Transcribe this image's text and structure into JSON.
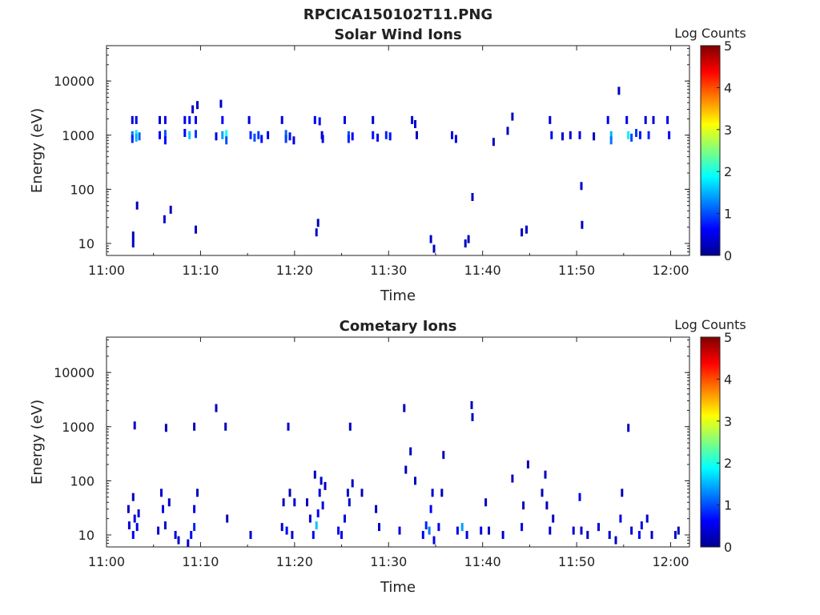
{
  "figure_title": "RPCICA150102T11.PNG",
  "chart_data": [
    {
      "type": "heatmap",
      "title": "Solar Wind Ions",
      "xlabel": "Time",
      "ylabel": "Energy (eV)",
      "x_scale": "time",
      "y_scale": "log",
      "xlim": [
        "11:00",
        "12:02"
      ],
      "ylim": [
        6,
        45000
      ],
      "xticks": [
        "11:00",
        "11:10",
        "11:20",
        "11:30",
        "11:40",
        "11:50",
        "12:00"
      ],
      "yticks": [
        "10",
        "100",
        "1000",
        "10000"
      ],
      "colorbar": {
        "label": "Log Counts",
        "range": [
          0,
          5
        ],
        "ticks": [
          "0",
          "1",
          "2",
          "3",
          "4",
          "5"
        ],
        "colormap": "jet"
      },
      "cells": [
        {
          "t": "11:02:45",
          "e": 1000,
          "v": 1.2
        },
        {
          "t": "11:02:45",
          "e": 850,
          "v": 0.8
        },
        {
          "t": "11:02:45",
          "e": 1900,
          "v": 0.4
        },
        {
          "t": "11:03:10",
          "e": 1050,
          "v": 1.8
        },
        {
          "t": "11:03:10",
          "e": 900,
          "v": 1.5
        },
        {
          "t": "11:03:10",
          "e": 1900,
          "v": 0.5
        },
        {
          "t": "11:03:30",
          "e": 950,
          "v": 1.1
        },
        {
          "t": "11:03:15",
          "e": 50,
          "v": 0.3
        },
        {
          "t": "11:02:50",
          "e": 10,
          "v": 0.4
        },
        {
          "t": "11:02:50",
          "e": 14,
          "v": 0.3
        },
        {
          "t": "11:05:40",
          "e": 1900,
          "v": 0.4
        },
        {
          "t": "11:05:40",
          "e": 1000,
          "v": 0.6
        },
        {
          "t": "11:06:15",
          "e": 1050,
          "v": 1.0
        },
        {
          "t": "11:06:15",
          "e": 800,
          "v": 0.6
        },
        {
          "t": "11:06:15",
          "e": 1900,
          "v": 0.5
        },
        {
          "t": "11:06:10",
          "e": 28,
          "v": 0.4
        },
        {
          "t": "11:06:50",
          "e": 42,
          "v": 0.3
        },
        {
          "t": "11:08:20",
          "e": 1100,
          "v": 0.6
        },
        {
          "t": "11:08:20",
          "e": 1900,
          "v": 0.5
        },
        {
          "t": "11:08:50",
          "e": 1000,
          "v": 1.6
        },
        {
          "t": "11:08:50",
          "e": 1900,
          "v": 0.7
        },
        {
          "t": "11:09:10",
          "e": 3000,
          "v": 0.4
        },
        {
          "t": "11:09:30",
          "e": 1050,
          "v": 0.9
        },
        {
          "t": "11:09:30",
          "e": 1900,
          "v": 0.6
        },
        {
          "t": "11:09:40",
          "e": 3600,
          "v": 0.3
        },
        {
          "t": "11:09:30",
          "e": 18,
          "v": 0.3
        },
        {
          "t": "11:11:40",
          "e": 950,
          "v": 0.5
        },
        {
          "t": "11:12:20",
          "e": 1000,
          "v": 1.4
        },
        {
          "t": "11:12:20",
          "e": 1900,
          "v": 0.6
        },
        {
          "t": "11:12:45",
          "e": 1050,
          "v": 1.9
        },
        {
          "t": "11:12:45",
          "e": 800,
          "v": 1.0
        },
        {
          "t": "11:12:10",
          "e": 3800,
          "v": 0.4
        },
        {
          "t": "11:15:10",
          "e": 1900,
          "v": 0.5
        },
        {
          "t": "11:15:20",
          "e": 1000,
          "v": 0.8
        },
        {
          "t": "11:15:45",
          "e": 900,
          "v": 1.0
        },
        {
          "t": "11:16:10",
          "e": 1000,
          "v": 0.9
        },
        {
          "t": "11:16:30",
          "e": 850,
          "v": 0.7
        },
        {
          "t": "11:17:10",
          "e": 1000,
          "v": 0.5
        },
        {
          "t": "11:18:40",
          "e": 1900,
          "v": 0.4
        },
        {
          "t": "11:19:05",
          "e": 1050,
          "v": 1.1
        },
        {
          "t": "11:19:05",
          "e": 850,
          "v": 0.9
        },
        {
          "t": "11:19:30",
          "e": 950,
          "v": 0.7
        },
        {
          "t": "11:19:55",
          "e": 800,
          "v": 0.5
        },
        {
          "t": "11:22:10",
          "e": 1900,
          "v": 0.6
        },
        {
          "t": "11:22:40",
          "e": 1800,
          "v": 0.7
        },
        {
          "t": "11:22:55",
          "e": 1000,
          "v": 0.4
        },
        {
          "t": "11:23:00",
          "e": 850,
          "v": 0.5
        },
        {
          "t": "11:22:20",
          "e": 16,
          "v": 0.4
        },
        {
          "t": "11:22:30",
          "e": 24,
          "v": 0.3
        },
        {
          "t": "11:25:20",
          "e": 1900,
          "v": 0.5
        },
        {
          "t": "11:25:45",
          "e": 1000,
          "v": 1.0
        },
        {
          "t": "11:25:45",
          "e": 850,
          "v": 0.8
        },
        {
          "t": "11:26:10",
          "e": 950,
          "v": 0.6
        },
        {
          "t": "11:28:20",
          "e": 1900,
          "v": 0.4
        },
        {
          "t": "11:28:20",
          "e": 1000,
          "v": 0.7
        },
        {
          "t": "11:28:50",
          "e": 900,
          "v": 0.6
        },
        {
          "t": "11:29:45",
          "e": 1000,
          "v": 0.8
        },
        {
          "t": "11:30:10",
          "e": 950,
          "v": 0.7
        },
        {
          "t": "11:32:30",
          "e": 1900,
          "v": 0.5
        },
        {
          "t": "11:32:50",
          "e": 1600,
          "v": 0.4
        },
        {
          "t": "11:33:00",
          "e": 1000,
          "v": 0.3
        },
        {
          "t": "11:34:30",
          "e": 12,
          "v": 0.4
        },
        {
          "t": "11:34:50",
          "e": 8,
          "v": 0.3
        },
        {
          "t": "11:36:45",
          "e": 1000,
          "v": 0.6
        },
        {
          "t": "11:37:10",
          "e": 850,
          "v": 0.5
        },
        {
          "t": "11:38:10",
          "e": 10,
          "v": 0.3
        },
        {
          "t": "11:38:30",
          "e": 12,
          "v": 0.3
        },
        {
          "t": "11:38:55",
          "e": 72,
          "v": 0.3
        },
        {
          "t": "11:41:10",
          "e": 750,
          "v": 0.3
        },
        {
          "t": "11:42:40",
          "e": 1200,
          "v": 0.3
        },
        {
          "t": "11:43:10",
          "e": 2200,
          "v": 0.3
        },
        {
          "t": "11:44:10",
          "e": 16,
          "v": 0.3
        },
        {
          "t": "11:44:40",
          "e": 18,
          "v": 0.4
        },
        {
          "t": "11:47:10",
          "e": 1900,
          "v": 0.4
        },
        {
          "t": "11:47:20",
          "e": 1000,
          "v": 0.6
        },
        {
          "t": "11:48:30",
          "e": 950,
          "v": 0.4
        },
        {
          "t": "11:49:20",
          "e": 1000,
          "v": 0.4
        },
        {
          "t": "11:50:20",
          "e": 1000,
          "v": 0.5
        },
        {
          "t": "11:50:30",
          "e": 115,
          "v": 0.4
        },
        {
          "t": "11:50:35",
          "e": 22,
          "v": 0.3
        },
        {
          "t": "11:51:50",
          "e": 950,
          "v": 0.3
        },
        {
          "t": "11:53:20",
          "e": 1900,
          "v": 0.6
        },
        {
          "t": "11:53:40",
          "e": 1000,
          "v": 1.5
        },
        {
          "t": "11:53:40",
          "e": 800,
          "v": 1.2
        },
        {
          "t": "11:54:30",
          "e": 6600,
          "v": 0.3
        },
        {
          "t": "11:55:20",
          "e": 1900,
          "v": 0.5
        },
        {
          "t": "11:55:30",
          "e": 1000,
          "v": 1.8
        },
        {
          "t": "11:55:50",
          "e": 900,
          "v": 1.0
        },
        {
          "t": "11:56:20",
          "e": 1100,
          "v": 0.9
        },
        {
          "t": "11:56:45",
          "e": 1000,
          "v": 0.7
        },
        {
          "t": "11:57:20",
          "e": 1900,
          "v": 0.4
        },
        {
          "t": "11:57:40",
          "e": 1000,
          "v": 0.8
        },
        {
          "t": "11:58:10",
          "e": 1900,
          "v": 0.4
        },
        {
          "t": "11:59:40",
          "e": 1900,
          "v": 0.5
        },
        {
          "t": "11:59:50",
          "e": 1000,
          "v": 0.6
        }
      ]
    },
    {
      "type": "heatmap",
      "title": "Cometary Ions",
      "xlabel": "Time",
      "ylabel": "Energy (eV)",
      "x_scale": "time",
      "y_scale": "log",
      "xlim": [
        "11:00",
        "12:02"
      ],
      "ylim": [
        6,
        45000
      ],
      "xticks": [
        "11:00",
        "11:10",
        "11:20",
        "11:30",
        "11:40",
        "11:50",
        "12:00"
      ],
      "yticks": [
        "10",
        "100",
        "1000",
        "10000"
      ],
      "colorbar": {
        "label": "Log Counts",
        "range": [
          0,
          5
        ],
        "ticks": [
          "0",
          "1",
          "2",
          "3",
          "4",
          "5"
        ],
        "colormap": "jet"
      },
      "cells": [
        {
          "t": "11:02:20",
          "e": 30,
          "v": 0.3
        },
        {
          "t": "11:02:25",
          "e": 15,
          "v": 0.4
        },
        {
          "t": "11:02:50",
          "e": 10,
          "v": 0.6
        },
        {
          "t": "11:02:50",
          "e": 50,
          "v": 0.3
        },
        {
          "t": "11:03:00",
          "e": 20,
          "v": 0.5
        },
        {
          "t": "11:03:00",
          "e": 1050,
          "v": 0.4
        },
        {
          "t": "11:03:15",
          "e": 14,
          "v": 0.5
        },
        {
          "t": "11:03:25",
          "e": 25,
          "v": 0.4
        },
        {
          "t": "11:05:30",
          "e": 12,
          "v": 0.4
        },
        {
          "t": "11:05:50",
          "e": 60,
          "v": 0.4
        },
        {
          "t": "11:06:00",
          "e": 30,
          "v": 0.5
        },
        {
          "t": "11:06:15",
          "e": 15,
          "v": 0.4
        },
        {
          "t": "11:06:20",
          "e": 950,
          "v": 0.3
        },
        {
          "t": "11:06:40",
          "e": 40,
          "v": 0.3
        },
        {
          "t": "11:07:20",
          "e": 10,
          "v": 0.4
        },
        {
          "t": "11:07:40",
          "e": 8,
          "v": 0.4
        },
        {
          "t": "11:08:40",
          "e": 7,
          "v": 0.4
        },
        {
          "t": "11:09:00",
          "e": 10,
          "v": 0.6
        },
        {
          "t": "11:09:20",
          "e": 14,
          "v": 0.8
        },
        {
          "t": "11:09:20",
          "e": 30,
          "v": 0.5
        },
        {
          "t": "11:09:20",
          "e": 1000,
          "v": 0.3
        },
        {
          "t": "11:09:40",
          "e": 60,
          "v": 0.3
        },
        {
          "t": "11:11:40",
          "e": 2200,
          "v": 0.3
        },
        {
          "t": "11:12:40",
          "e": 1000,
          "v": 0.3
        },
        {
          "t": "11:12:50",
          "e": 20,
          "v": 0.3
        },
        {
          "t": "11:15:20",
          "e": 10,
          "v": 0.4
        },
        {
          "t": "11:18:40",
          "e": 14,
          "v": 0.4
        },
        {
          "t": "11:18:50",
          "e": 40,
          "v": 0.3
        },
        {
          "t": "11:19:10",
          "e": 12,
          "v": 0.6
        },
        {
          "t": "11:19:20",
          "e": 1000,
          "v": 0.4
        },
        {
          "t": "11:19:30",
          "e": 60,
          "v": 0.3
        },
        {
          "t": "11:19:45",
          "e": 10,
          "v": 0.4
        },
        {
          "t": "11:20:00",
          "e": 40,
          "v": 0.4
        },
        {
          "t": "11:21:20",
          "e": 40,
          "v": 0.3
        },
        {
          "t": "11:21:40",
          "e": 20,
          "v": 0.4
        },
        {
          "t": "11:22:00",
          "e": 10,
          "v": 0.6
        },
        {
          "t": "11:22:10",
          "e": 130,
          "v": 0.3
        },
        {
          "t": "11:22:20",
          "e": 15,
          "v": 1.6
        },
        {
          "t": "11:22:30",
          "e": 25,
          "v": 0.6
        },
        {
          "t": "11:22:40",
          "e": 60,
          "v": 0.5
        },
        {
          "t": "11:22:50",
          "e": 100,
          "v": 0.4
        },
        {
          "t": "11:23:00",
          "e": 35,
          "v": 0.5
        },
        {
          "t": "11:23:15",
          "e": 80,
          "v": 0.3
        },
        {
          "t": "11:24:40",
          "e": 12,
          "v": 0.5
        },
        {
          "t": "11:25:00",
          "e": 10,
          "v": 0.6
        },
        {
          "t": "11:25:20",
          "e": 20,
          "v": 0.5
        },
        {
          "t": "11:25:40",
          "e": 60,
          "v": 0.4
        },
        {
          "t": "11:25:50",
          "e": 40,
          "v": 0.4
        },
        {
          "t": "11:25:55",
          "e": 1000,
          "v": 0.3
        },
        {
          "t": "11:26:10",
          "e": 90,
          "v": 0.3
        },
        {
          "t": "11:27:10",
          "e": 60,
          "v": 0.3
        },
        {
          "t": "11:28:40",
          "e": 30,
          "v": 0.3
        },
        {
          "t": "11:29:00",
          "e": 14,
          "v": 0.3
        },
        {
          "t": "11:31:10",
          "e": 12,
          "v": 0.5
        },
        {
          "t": "11:31:40",
          "e": 2200,
          "v": 0.3
        },
        {
          "t": "11:31:50",
          "e": 160,
          "v": 0.3
        },
        {
          "t": "11:32:20",
          "e": 350,
          "v": 0.3
        },
        {
          "t": "11:32:50",
          "e": 100,
          "v": 0.3
        },
        {
          "t": "11:33:40",
          "e": 10,
          "v": 0.6
        },
        {
          "t": "11:34:00",
          "e": 15,
          "v": 0.8
        },
        {
          "t": "11:34:20",
          "e": 12,
          "v": 1.2
        },
        {
          "t": "11:34:30",
          "e": 30,
          "v": 0.6
        },
        {
          "t": "11:34:40",
          "e": 60,
          "v": 0.4
        },
        {
          "t": "11:34:50",
          "e": 8,
          "v": 0.5
        },
        {
          "t": "11:35:20",
          "e": 14,
          "v": 0.5
        },
        {
          "t": "11:35:40",
          "e": 60,
          "v": 0.3
        },
        {
          "t": "11:35:50",
          "e": 300,
          "v": 0.3
        },
        {
          "t": "11:37:20",
          "e": 12,
          "v": 0.6
        },
        {
          "t": "11:37:50",
          "e": 14,
          "v": 1.4
        },
        {
          "t": "11:38:20",
          "e": 10,
          "v": 0.5
        },
        {
          "t": "11:38:50",
          "e": 2500,
          "v": 0.3
        },
        {
          "t": "11:38:55",
          "e": 1500,
          "v": 0.3
        },
        {
          "t": "11:39:50",
          "e": 12,
          "v": 0.5
        },
        {
          "t": "11:40:20",
          "e": 40,
          "v": 0.3
        },
        {
          "t": "11:40:40",
          "e": 12,
          "v": 0.4
        },
        {
          "t": "11:42:10",
          "e": 10,
          "v": 0.4
        },
        {
          "t": "11:43:10",
          "e": 110,
          "v": 0.3
        },
        {
          "t": "11:44:10",
          "e": 14,
          "v": 0.5
        },
        {
          "t": "11:44:20",
          "e": 35,
          "v": 0.3
        },
        {
          "t": "11:44:50",
          "e": 200,
          "v": 0.3
        },
        {
          "t": "11:46:20",
          "e": 60,
          "v": 0.3
        },
        {
          "t": "11:46:40",
          "e": 130,
          "v": 0.3
        },
        {
          "t": "11:46:50",
          "e": 35,
          "v": 0.3
        },
        {
          "t": "11:47:10",
          "e": 12,
          "v": 0.4
        },
        {
          "t": "11:47:30",
          "e": 20,
          "v": 0.3
        },
        {
          "t": "11:49:40",
          "e": 12,
          "v": 0.4
        },
        {
          "t": "11:50:20",
          "e": 50,
          "v": 0.5
        },
        {
          "t": "11:50:30",
          "e": 12,
          "v": 0.4
        },
        {
          "t": "11:51:10",
          "e": 10,
          "v": 0.3
        },
        {
          "t": "11:52:20",
          "e": 14,
          "v": 0.4
        },
        {
          "t": "11:53:30",
          "e": 10,
          "v": 0.4
        },
        {
          "t": "11:54:10",
          "e": 8,
          "v": 0.3
        },
        {
          "t": "11:54:40",
          "e": 20,
          "v": 0.5
        },
        {
          "t": "11:54:50",
          "e": 60,
          "v": 0.3
        },
        {
          "t": "11:55:30",
          "e": 950,
          "v": 0.3
        },
        {
          "t": "11:55:50",
          "e": 12,
          "v": 0.4
        },
        {
          "t": "11:56:40",
          "e": 10,
          "v": 0.6
        },
        {
          "t": "11:56:55",
          "e": 15,
          "v": 0.5
        },
        {
          "t": "11:57:30",
          "e": 20,
          "v": 0.4
        },
        {
          "t": "11:58:00",
          "e": 10,
          "v": 0.4
        },
        {
          "t": "12:00:30",
          "e": 10,
          "v": 0.4
        },
        {
          "t": "12:00:50",
          "e": 12,
          "v": 0.3
        }
      ]
    }
  ]
}
